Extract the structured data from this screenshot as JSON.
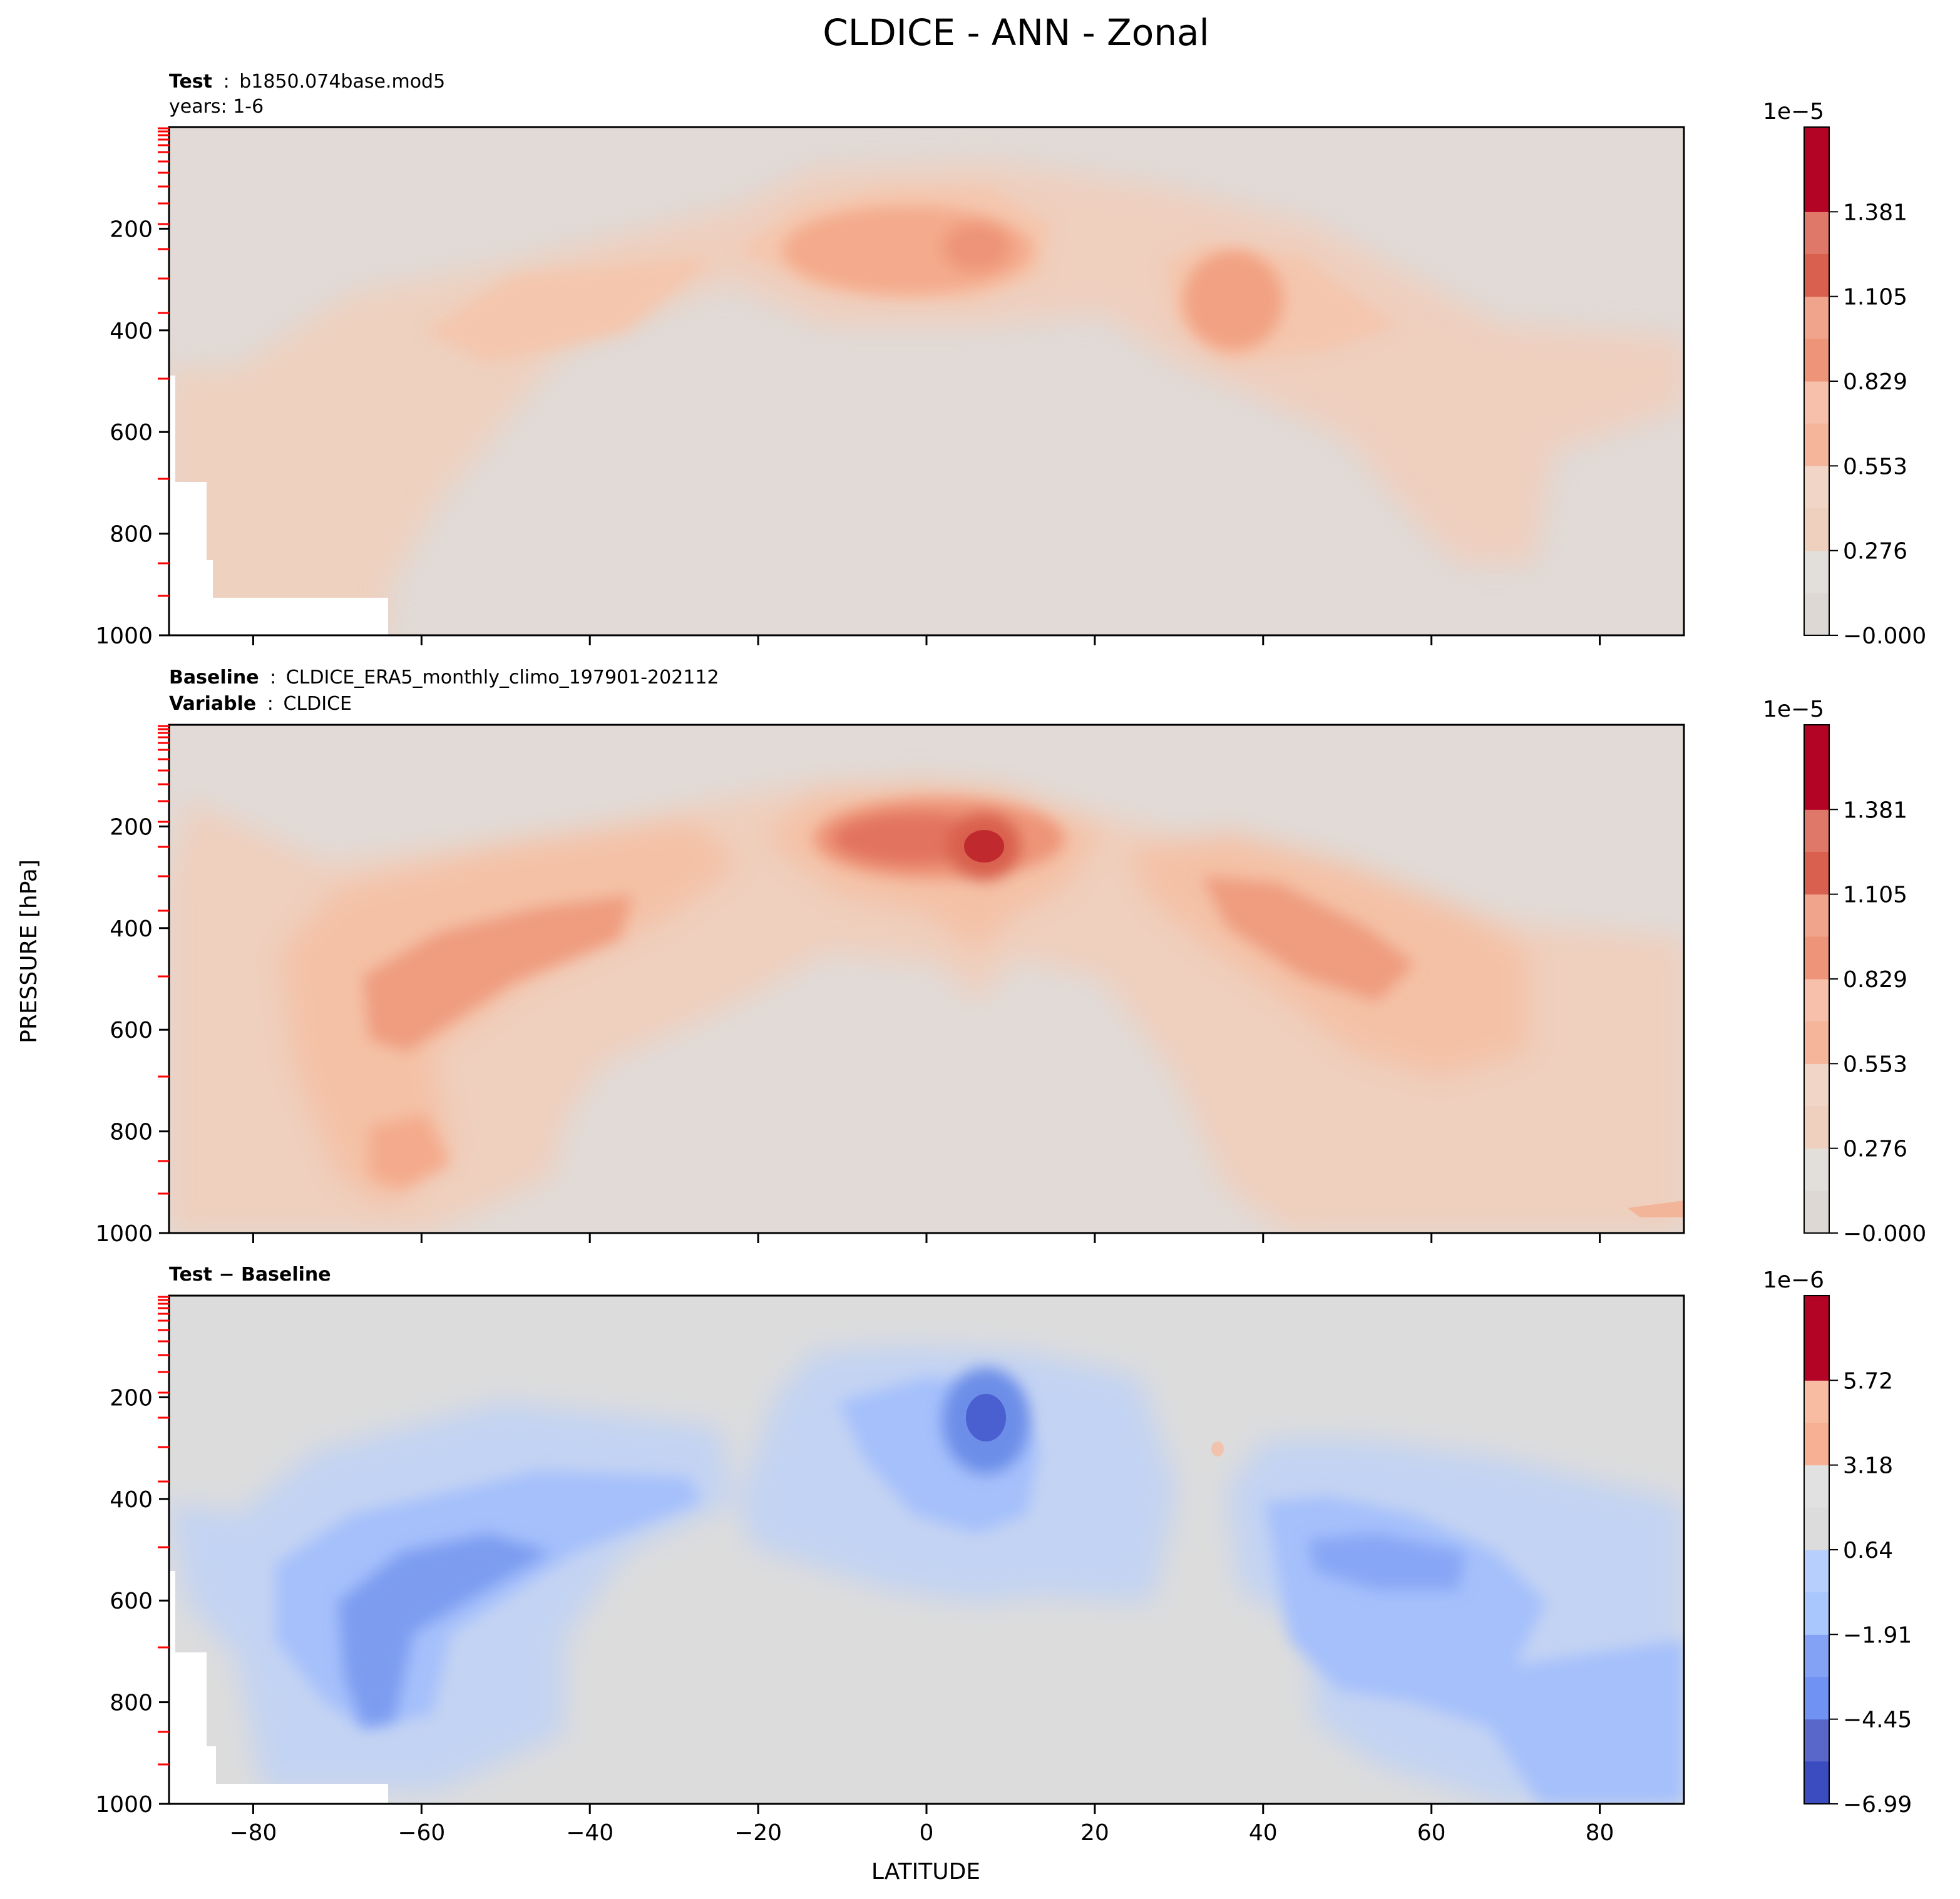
{
  "title": "CLDICE - ANN - Zonal",
  "x_axis_label": "LATITUDE",
  "y_axis_label": "PRESSURE [hPa]",
  "panels": [
    {
      "caption_line1_bold": "Test",
      "caption_line1_sep": ":",
      "caption_line1_text": "b1850.074base.mod5",
      "caption_line2_text": "years: 1-6",
      "colorbar_exponent": "1e−5",
      "colorbar_ticks": [
        "−0.000",
        "0.276",
        "0.553",
        "0.829",
        "1.105",
        "1.381"
      ]
    },
    {
      "caption_line1_bold": "Baseline",
      "caption_line1_sep": ":",
      "caption_line1_text": "CLDICE_ERA5_monthly_climo_197901-202112",
      "caption_line2_bold": "Variable",
      "caption_line2_sep": ":",
      "caption_line2_text": "CLDICE",
      "colorbar_exponent": "1e−5",
      "colorbar_ticks": [
        "−0.000",
        "0.276",
        "0.553",
        "0.829",
        "1.105",
        "1.381"
      ]
    },
    {
      "caption_line1_bold": "Test − Baseline",
      "colorbar_exponent": "1e−6",
      "colorbar_ticks": [
        "−6.99",
        "−4.45",
        "−1.91",
        "0.64",
        "3.18",
        "5.72"
      ]
    }
  ],
  "chart_data": [
    {
      "type": "heatmap",
      "panel": "test",
      "x_ticks": [
        -80,
        -60,
        -40,
        -20,
        0,
        20,
        40,
        60,
        80
      ],
      "y_ticks": [
        200,
        400,
        600,
        800,
        1000
      ],
      "xlim": [
        -90,
        90
      ],
      "ylim": [
        1000,
        0
      ],
      "color_levels": [
        0,
        2.76e-06,
        5.53e-06,
        8.29e-06,
        1.105e-05,
        1.381e-05
      ],
      "colormap": [
        "#ddd8d4",
        "#efcfbd",
        "#f4b59b",
        "#ee9478",
        "#d9604e",
        "#b40426"
      ],
      "features": [
        {
          "lat": -5,
          "pressure": 240,
          "value": 7.5e-06
        },
        {
          "lat": 8,
          "pressure": 245,
          "value": 8e-06
        },
        {
          "lat": 36,
          "pressure": 320,
          "value": 7e-06
        },
        {
          "lat": -45,
          "pressure": 380,
          "value": 4.5e-06
        }
      ]
    },
    {
      "type": "heatmap",
      "panel": "baseline",
      "x_ticks": [
        -80,
        -60,
        -40,
        -20,
        0,
        20,
        40,
        60,
        80
      ],
      "y_ticks": [
        200,
        400,
        600,
        800,
        1000
      ],
      "xlim": [
        -90,
        90
      ],
      "ylim": [
        1000,
        0
      ],
      "color_levels": [
        0,
        2.76e-06,
        5.53e-06,
        8.29e-06,
        1.105e-05,
        1.381e-05
      ],
      "colormap": [
        "#ddd8d4",
        "#efcfbd",
        "#f4b59b",
        "#ee9478",
        "#d9604e",
        "#b40426"
      ],
      "features": [
        {
          "lat": 7,
          "pressure": 245,
          "value": 1.45e-05
        },
        {
          "lat": -5,
          "pressure": 240,
          "value": 1e-05
        },
        {
          "lat": -55,
          "pressure": 500,
          "value": 8.5e-06
        },
        {
          "lat": 42,
          "pressure": 380,
          "value": 8.5e-06
        },
        {
          "lat": -62,
          "pressure": 820,
          "value": 6e-06
        }
      ]
    },
    {
      "type": "heatmap",
      "panel": "difference",
      "x_ticks": [
        -80,
        -60,
        -40,
        -20,
        0,
        20,
        40,
        60,
        80
      ],
      "y_ticks": [
        200,
        400,
        600,
        800,
        1000
      ],
      "xlim": [
        -90,
        90
      ],
      "ylim": [
        1000,
        0
      ],
      "color_levels": [
        -6.99e-06,
        -4.45e-06,
        -1.91e-06,
        6.4e-07,
        3.18e-06,
        5.72e-06
      ],
      "colormap": [
        "#3b4cc0",
        "#6f92f3",
        "#aac7fd",
        "#dddcdc",
        "#f7b093",
        "#b40426"
      ],
      "features": [
        {
          "lat": 7,
          "pressure": 250,
          "value": -6.5e-06
        },
        {
          "lat": -60,
          "pressure": 600,
          "value": -5e-06
        },
        {
          "lat": 50,
          "pressure": 520,
          "value": -3.5e-06
        },
        {
          "lat": 35,
          "pressure": 300,
          "value": 1e-06
        }
      ]
    }
  ]
}
